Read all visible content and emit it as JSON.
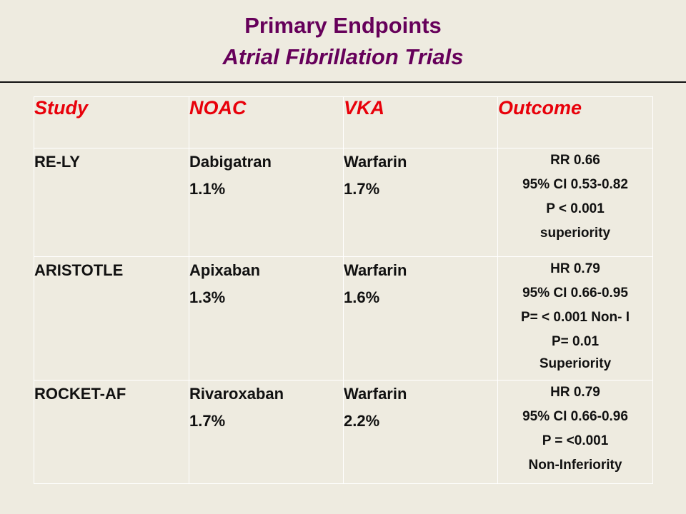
{
  "slide": {
    "title_line_1": "Primary Endpoints",
    "title_line_2": "Atrial Fibrillation Trials",
    "title_color": "#66005A",
    "header_color": "#E8000A",
    "background_color": "#EEEBE0"
  },
  "table": {
    "headers": [
      "Study",
      "NOAC",
      "VKA",
      "Outcome"
    ],
    "rows": [
      {
        "study": "RE-LY",
        "noac_drug": "Dabigatran",
        "noac_rate": "1.1%",
        "vka_drug": "Warfarin",
        "vka_rate": "1.7%",
        "outcome": [
          "RR 0.66",
          "95% CI 0.53-0.82",
          "P < 0.001",
          "superiority"
        ]
      },
      {
        "study": "ARISTOTLE",
        "noac_drug": "Apixaban",
        "noac_rate": "1.3%",
        "vka_drug": "Warfarin",
        "vka_rate": "1.6%",
        "outcome": [
          "HR 0.79",
          "95% CI 0.66-0.95",
          "P= < 0.001 Non- I",
          "P= 0.01",
          "Superiority"
        ]
      },
      {
        "study": "ROCKET-AF",
        "noac_drug": "Rivaroxaban",
        "noac_rate": "1.7%",
        "vka_drug": "Warfarin",
        "vka_rate": "2.2%",
        "outcome": [
          "HR 0.79",
          "95% CI 0.66-0.96",
          "P = <0.001",
          "Non-Inferiority"
        ]
      }
    ]
  }
}
